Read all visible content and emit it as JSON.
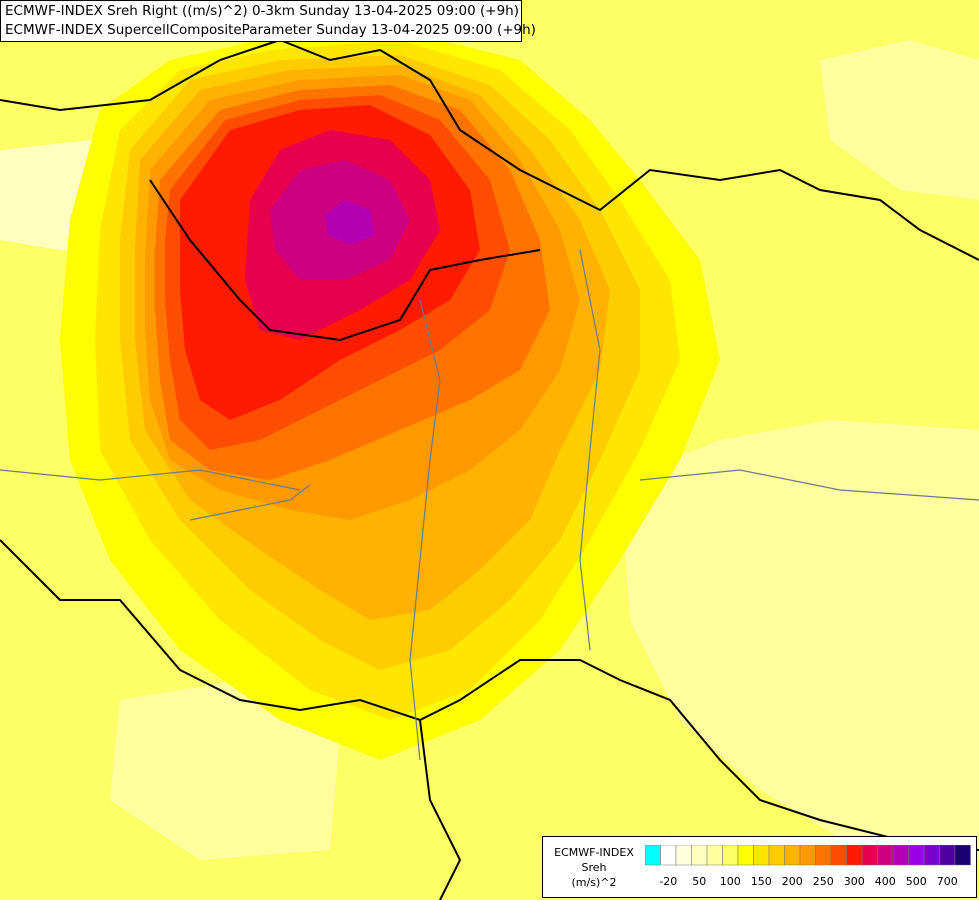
{
  "header": {
    "line1": "ECMWF-INDEX Sreh Right ((m/s)^2) 0-3km Sunday 13-04-2025 09:00 (+9h)",
    "line2": "ECMWF-INDEX SupercellCompositeParameter Sunday 13-04-2025 09:00 (+9h)"
  },
  "legend": {
    "line1": "ECMWF-INDEX",
    "line2": "Sreh",
    "line3": "(m/s)^2",
    "colors": [
      "#00ffff",
      "#ffffff",
      "#ffffe0",
      "#ffffc0",
      "#ffffa0",
      "#ffff66",
      "#ffff00",
      "#ffe600",
      "#ffcc00",
      "#ffb300",
      "#ff9900",
      "#ff7300",
      "#ff4d00",
      "#ff1a00",
      "#e6004d",
      "#cc0080",
      "#b300b3",
      "#9900e6",
      "#7a00cc",
      "#5000a0",
      "#1a0070"
    ],
    "ticks": [
      "-20",
      "50",
      "100",
      "150",
      "200",
      "250",
      "300",
      "400",
      "500",
      "700"
    ]
  },
  "field": [
    {
      "level": 50,
      "color": "#ffffc0"
    },
    {
      "level": 80,
      "color": "#ffffa0"
    },
    {
      "level": 100,
      "color": "#ffff66"
    },
    {
      "level": 120,
      "color": "#ffff00"
    },
    {
      "level": 150,
      "color": "#ffe600"
    },
    {
      "level": 175,
      "color": "#ffcc00"
    },
    {
      "level": 200,
      "color": "#ffb300"
    },
    {
      "level": 225,
      "color": "#ff9900"
    },
    {
      "level": 250,
      "color": "#ff7300"
    },
    {
      "level": 275,
      "color": "#ff4d00"
    },
    {
      "level": 300,
      "color": "#ff1a00"
    },
    {
      "level": 350,
      "color": "#e6004d"
    },
    {
      "level": 400,
      "color": "#cc0080"
    },
    {
      "level": 450,
      "color": "#b300b3"
    }
  ]
}
